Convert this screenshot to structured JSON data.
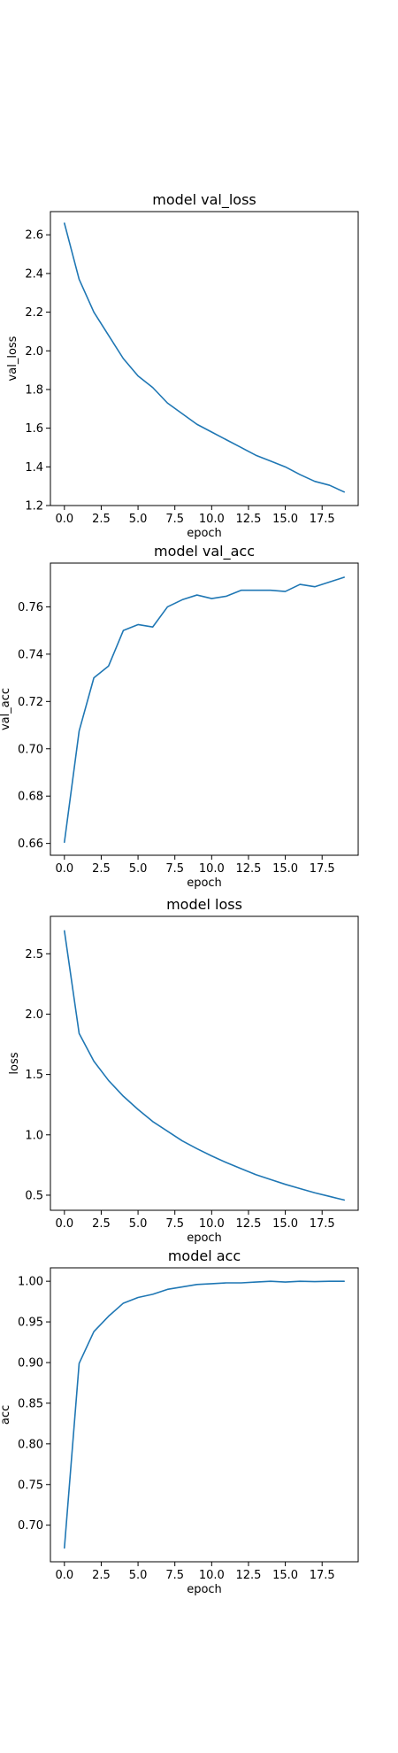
{
  "chart_data": [
    {
      "type": "line",
      "title": "model val_loss",
      "xlabel": "epoch",
      "ylabel": "val_loss",
      "xlim": [
        -0.95,
        19.95
      ],
      "ylim": [
        1.2,
        2.72
      ],
      "xticks": [
        0,
        2.5,
        5,
        7.5,
        10,
        12.5,
        15,
        17.5
      ],
      "xtick_labels": [
        "0.0",
        "2.5",
        "5.0",
        "7.5",
        "10.0",
        "12.5",
        "15.0",
        "17.5"
      ],
      "yticks": [
        1.2,
        1.4,
        1.6,
        1.8,
        2.0,
        2.2,
        2.4,
        2.6
      ],
      "ytick_labels": [
        "1.2",
        "1.4",
        "1.6",
        "1.8",
        "2.0",
        "2.2",
        "2.4",
        "2.6"
      ],
      "color": "#1f77b4",
      "x": [
        0,
        1,
        2,
        3,
        4,
        5,
        6,
        7,
        8,
        9,
        10,
        11,
        12,
        13,
        14,
        15,
        16,
        17,
        18,
        19
      ],
      "y": [
        2.66,
        2.37,
        2.2,
        2.08,
        1.96,
        1.87,
        1.81,
        1.73,
        1.675,
        1.62,
        1.58,
        1.54,
        1.5,
        1.46,
        1.43,
        1.4,
        1.36,
        1.325,
        1.305,
        1.27
      ]
    },
    {
      "type": "line",
      "title": "model val_acc",
      "xlabel": "epoch",
      "ylabel": "val_acc",
      "xlim": [
        -0.95,
        19.95
      ],
      "ylim": [
        0.655,
        0.7785
      ],
      "xticks": [
        0,
        2.5,
        5,
        7.5,
        10,
        12.5,
        15,
        17.5
      ],
      "xtick_labels": [
        "0.0",
        "2.5",
        "5.0",
        "7.5",
        "10.0",
        "12.5",
        "15.0",
        "17.5"
      ],
      "yticks": [
        0.66,
        0.68,
        0.7,
        0.72,
        0.74,
        0.76
      ],
      "ytick_labels": [
        "0.66",
        "0.68",
        "0.70",
        "0.72",
        "0.74",
        "0.76"
      ],
      "color": "#1f77b4",
      "x": [
        0,
        1,
        2,
        3,
        4,
        5,
        6,
        7,
        8,
        9,
        10,
        11,
        12,
        13,
        14,
        15,
        16,
        17,
        18,
        19
      ],
      "y": [
        0.6605,
        0.7075,
        0.73,
        0.735,
        0.75,
        0.7525,
        0.7515,
        0.76,
        0.763,
        0.765,
        0.7635,
        0.7645,
        0.767,
        0.767,
        0.767,
        0.7665,
        0.7695,
        0.7685,
        0.7705,
        0.7725
      ]
    },
    {
      "type": "line",
      "title": "model loss",
      "xlabel": "epoch",
      "ylabel": "loss",
      "xlim": [
        -0.95,
        19.95
      ],
      "ylim": [
        0.375,
        2.81
      ],
      "xticks": [
        0,
        2.5,
        5,
        7.5,
        10,
        12.5,
        15,
        17.5
      ],
      "xtick_labels": [
        "0.0",
        "2.5",
        "5.0",
        "7.5",
        "10.0",
        "12.5",
        "15.0",
        "17.5"
      ],
      "yticks": [
        0.5,
        1.0,
        1.5,
        2.0,
        2.5
      ],
      "ytick_labels": [
        "0.5",
        "1.0",
        "1.5",
        "2.0",
        "2.5"
      ],
      "color": "#1f77b4",
      "x": [
        0,
        1,
        2,
        3,
        4,
        5,
        6,
        7,
        8,
        9,
        10,
        11,
        12,
        13,
        14,
        15,
        16,
        17,
        18,
        19
      ],
      "y": [
        2.69,
        1.84,
        1.61,
        1.45,
        1.32,
        1.21,
        1.11,
        1.03,
        0.95,
        0.885,
        0.825,
        0.77,
        0.72,
        0.67,
        0.63,
        0.59,
        0.555,
        0.52,
        0.49,
        0.46
      ]
    },
    {
      "type": "line",
      "title": "model acc",
      "xlabel": "epoch",
      "ylabel": "acc",
      "xlim": [
        -0.95,
        19.95
      ],
      "ylim": [
        0.655,
        1.0165
      ],
      "xticks": [
        0,
        2.5,
        5,
        7.5,
        10,
        12.5,
        15,
        17.5
      ],
      "xtick_labels": [
        "0.0",
        "2.5",
        "5.0",
        "7.5",
        "10.0",
        "12.5",
        "15.0",
        "17.5"
      ],
      "yticks": [
        0.7,
        0.75,
        0.8,
        0.85,
        0.9,
        0.95,
        1.0
      ],
      "ytick_labels": [
        "0.70",
        "0.75",
        "0.80",
        "0.85",
        "0.90",
        "0.95",
        "1.00"
      ],
      "color": "#1f77b4",
      "x": [
        0,
        1,
        2,
        3,
        4,
        5,
        6,
        7,
        8,
        9,
        10,
        11,
        12,
        13,
        14,
        15,
        16,
        17,
        18,
        19
      ],
      "y": [
        0.672,
        0.899,
        0.938,
        0.957,
        0.973,
        0.98,
        0.984,
        0.99,
        0.993,
        0.996,
        0.997,
        0.998,
        0.998,
        0.999,
        1.0,
        0.999,
        1.0,
        0.9995,
        1.0,
        1.0
      ]
    }
  ]
}
